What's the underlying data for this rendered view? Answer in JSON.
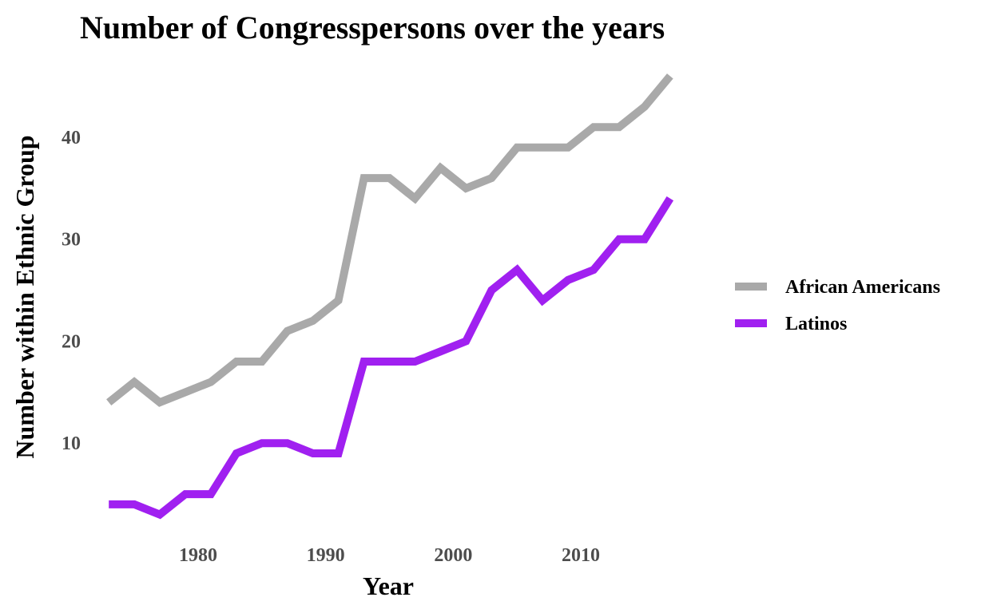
{
  "chart_data": {
    "type": "line",
    "title": "Number of Congresspersons over the years",
    "xlabel": "Year",
    "ylabel": "Number within Ethnic Group",
    "x": [
      1973,
      1975,
      1977,
      1979,
      1981,
      1983,
      1985,
      1987,
      1989,
      1991,
      1993,
      1995,
      1997,
      1999,
      2001,
      2003,
      2005,
      2007,
      2009,
      2011,
      2013,
      2015,
      2017
    ],
    "series": [
      {
        "name": "African Americans",
        "color": "#a9a9a9",
        "values": [
          14,
          16,
          14,
          15,
          16,
          18,
          18,
          21,
          22,
          24,
          36,
          36,
          34,
          37,
          35,
          36,
          39,
          39,
          39,
          41,
          41,
          43,
          46
        ]
      },
      {
        "name": "Latinos",
        "color": "#a020f0",
        "values": [
          4,
          4,
          3,
          5,
          5,
          9,
          10,
          10,
          9,
          9,
          18,
          18,
          18,
          19,
          20,
          25,
          27,
          24,
          26,
          27,
          30,
          30,
          34
        ]
      }
    ],
    "xticks": [
      1980,
      1990,
      2000,
      2010
    ],
    "yticks": [
      10,
      20,
      30,
      40
    ],
    "xlim": [
      1971.8,
      2018.2
    ],
    "ylim": [
      1.8,
      47.2
    ],
    "grid": false,
    "legend_position": "right"
  }
}
